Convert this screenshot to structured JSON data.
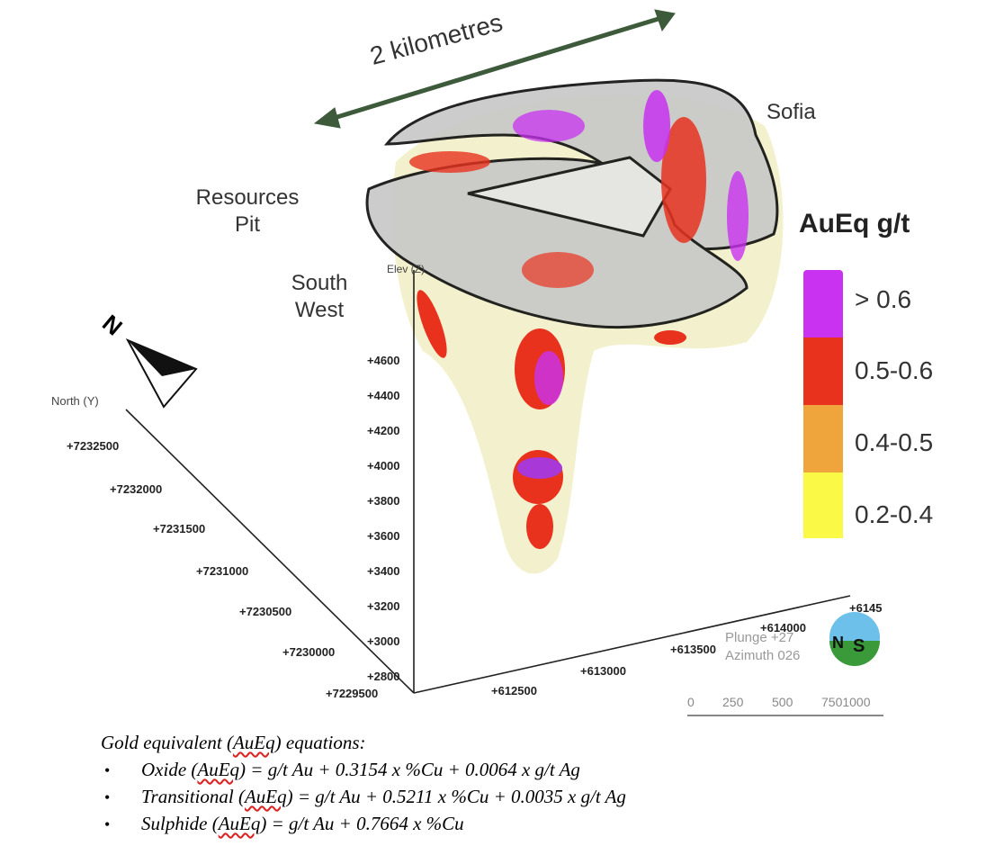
{
  "scale_arrow_label": "2 kilometres",
  "region_labels": {
    "sofia": "Sofia",
    "resources_pit": [
      "Resources",
      "Pit"
    ],
    "south_west": [
      "South",
      "West"
    ]
  },
  "axis": {
    "elevation_label": "Elev (Z)",
    "elevation_ticks": [
      "+4600",
      "+4400",
      "+4200",
      "+4000",
      "+3800",
      "+3600",
      "+3400",
      "+3200",
      "+3000",
      "+2800"
    ],
    "north_label": "North (Y)",
    "north_ticks": [
      "+7232500",
      "+7232000",
      "+7231500",
      "+7231000",
      "+7230500",
      "+7230000",
      "+7229500"
    ],
    "east_ticks": [
      "+612500",
      "+613000",
      "+613500",
      "+614000",
      "+6145"
    ]
  },
  "view": {
    "plunge": "Plunge +27",
    "azimuth": "Azimuth 026",
    "compass_letters": [
      "N",
      "S"
    ]
  },
  "scale_bar": {
    "ticks": [
      "0",
      "250",
      "500",
      "7501000"
    ]
  },
  "legend": {
    "title": "AuEq g/t",
    "items": [
      {
        "label": "> 0.6",
        "color": "#c832f0"
      },
      {
        "label": "0.5-0.6",
        "color": "#e8321e"
      },
      {
        "label": "0.4-0.5",
        "color": "#f0a53c"
      },
      {
        "label": "0.2-0.4",
        "color": "#fafa46"
      }
    ]
  },
  "equations": {
    "heading_pre": "Gold equivalent (",
    "heading_term": "AuEq",
    "heading_post": ") equations:",
    "items": [
      {
        "name": "Oxide (",
        "term": "AuEq",
        "formula": ") = g/t Au + 0.3154 x %Cu + 0.0064 x g/t Ag"
      },
      {
        "name": "Transitional (",
        "term": "AuEq",
        "formula": ") = g/t Au + 0.5211 x %Cu + 0.0035 x g/t Ag"
      },
      {
        "name": "Sulphide (",
        "term": "AuEq",
        "formula": ") = g/t Au + 0.7664 x %Cu"
      }
    ],
    "bullet": "•"
  },
  "colors": {
    "arrow": "#3d5a3a",
    "pit_shell": "#bdbdbd",
    "halo": "#f2f0c8"
  }
}
